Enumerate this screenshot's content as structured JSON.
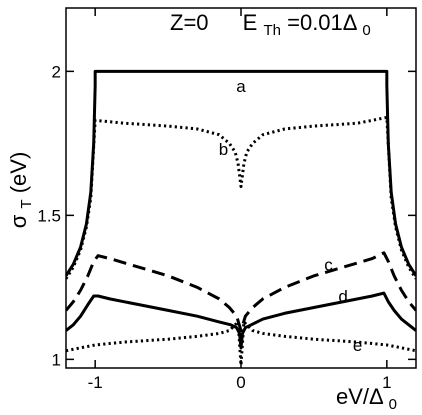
{
  "chart_data": {
    "type": "line",
    "title": "",
    "annotation": {
      "z": "Z=0",
      "eth_main": "E",
      "eth_sub": "Th",
      "eth_val": "=0.01Δ",
      "eth_sub2": "0"
    },
    "xlabel": {
      "main": "eV/Δ",
      "sub": "0"
    },
    "ylabel": {
      "main": "σ",
      "sub": "T",
      "unit": "(eV)"
    },
    "xlim": [
      -1.2,
      1.2
    ],
    "ylim": [
      0.97,
      2.22
    ],
    "xticks": [
      -1,
      0,
      1
    ],
    "xtick_labels": [
      "-1",
      "0",
      "1"
    ],
    "yticks": [
      1,
      1.5,
      2
    ],
    "ytick_labels": [
      "1",
      "1.5",
      "2"
    ],
    "grid": false,
    "series": [
      {
        "name": "a",
        "style": "solid",
        "width": 3,
        "x": [
          -1.2,
          -1.15,
          -1.1,
          -1.06,
          -1.03,
          -1.01,
          -1.0,
          -1.0,
          0,
          1.0,
          1.0,
          1.01,
          1.03,
          1.06,
          1.1,
          1.15,
          1.2
        ],
        "y": [
          1.29,
          1.33,
          1.39,
          1.47,
          1.58,
          1.75,
          1.95,
          2.0,
          2.0,
          2.0,
          1.95,
          1.75,
          1.58,
          1.47,
          1.39,
          1.33,
          1.29
        ]
      },
      {
        "name": "b",
        "style": "dotted",
        "width": 3,
        "x": [
          -1.2,
          -1.15,
          -1.1,
          -1.06,
          -1.03,
          -1.0,
          -0.8,
          -0.5,
          -0.3,
          -0.15,
          -0.08,
          -0.04,
          -0.02,
          0,
          0.02,
          0.04,
          0.08,
          0.15,
          0.3,
          0.5,
          0.8,
          1.0,
          1.03,
          1.06,
          1.1,
          1.15,
          1.2
        ],
        "y": [
          1.28,
          1.32,
          1.38,
          1.46,
          1.56,
          1.83,
          1.82,
          1.81,
          1.8,
          1.78,
          1.75,
          1.72,
          1.68,
          1.6,
          1.68,
          1.72,
          1.75,
          1.78,
          1.8,
          1.81,
          1.82,
          1.84,
          1.56,
          1.46,
          1.38,
          1.32,
          1.28
        ]
      },
      {
        "name": "c",
        "style": "dashed",
        "width": 3,
        "x": [
          -1.2,
          -1.15,
          -1.1,
          -1.05,
          -1.01,
          -0.98,
          -0.9,
          -0.7,
          -0.5,
          -0.3,
          -0.15,
          -0.08,
          -0.03,
          0,
          0.03,
          0.08,
          0.15,
          0.3,
          0.5,
          0.7,
          0.9,
          0.98,
          1.01,
          1.05,
          1.1,
          1.15,
          1.2
        ],
        "y": [
          1.17,
          1.2,
          1.24,
          1.29,
          1.34,
          1.36,
          1.35,
          1.32,
          1.29,
          1.25,
          1.21,
          1.18,
          1.15,
          1.1,
          1.15,
          1.18,
          1.21,
          1.25,
          1.29,
          1.32,
          1.35,
          1.37,
          1.34,
          1.29,
          1.24,
          1.2,
          1.17
        ]
      },
      {
        "name": "d",
        "style": "solid",
        "width": 3,
        "x": [
          -1.2,
          -1.15,
          -1.1,
          -1.05,
          -1.01,
          -0.98,
          -0.9,
          -0.7,
          -0.5,
          -0.3,
          -0.15,
          -0.07,
          -0.03,
          -0.01,
          0,
          0.01,
          0.03,
          0.07,
          0.15,
          0.3,
          0.5,
          0.7,
          0.9,
          0.98,
          1.01,
          1.05,
          1.1,
          1.15,
          1.2
        ],
        "y": [
          1.1,
          1.12,
          1.15,
          1.19,
          1.22,
          1.22,
          1.21,
          1.19,
          1.17,
          1.15,
          1.13,
          1.12,
          1.11,
          1.09,
          1.04,
          1.09,
          1.11,
          1.12,
          1.14,
          1.16,
          1.18,
          1.2,
          1.22,
          1.23,
          1.2,
          1.17,
          1.14,
          1.12,
          1.1
        ]
      },
      {
        "name": "e",
        "style": "dotted",
        "width": 3,
        "x": [
          -1.2,
          -1.1,
          -1.0,
          -0.8,
          -0.5,
          -0.3,
          -0.15,
          -0.08,
          -0.04,
          -0.02,
          0,
          0.02,
          0.04,
          0.08,
          0.15,
          0.3,
          0.5,
          0.8,
          1.0,
          1.1,
          1.2
        ],
        "y": [
          1.03,
          1.04,
          1.05,
          1.06,
          1.07,
          1.08,
          1.09,
          1.1,
          1.12,
          1.13,
          0.98,
          1.13,
          1.12,
          1.1,
          1.09,
          1.08,
          1.07,
          1.06,
          1.05,
          1.04,
          1.03
        ]
      }
    ],
    "curve_labels": [
      {
        "text": "a",
        "x": 0.0,
        "y": 1.95
      },
      {
        "text": "b",
        "x": -0.12,
        "y": 1.73
      },
      {
        "text": "c",
        "x": 0.6,
        "y": 1.33
      },
      {
        "text": "d",
        "x": 0.7,
        "y": 1.22
      },
      {
        "text": "e",
        "x": 0.8,
        "y": 1.05
      }
    ]
  }
}
